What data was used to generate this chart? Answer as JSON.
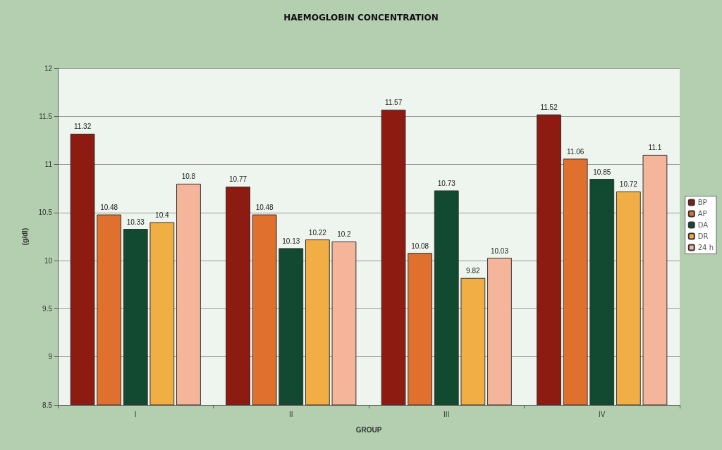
{
  "chart_data": {
    "type": "bar",
    "title": "HAEMOGLOBIN CONCENTRATION",
    "xlabel": "GROUP",
    "ylabel": "(g/dl)",
    "categories": [
      "I",
      "II",
      "III",
      "IV"
    ],
    "series": [
      {
        "name": "BP",
        "color": "#8e1b12",
        "values": [
          11.32,
          10.77,
          11.57,
          11.52
        ]
      },
      {
        "name": "AP",
        "color": "#e0702e",
        "values": [
          10.48,
          10.48,
          10.08,
          11.06
        ]
      },
      {
        "name": "DA",
        "color": "#114a30",
        "values": [
          10.33,
          10.13,
          10.73,
          10.85
        ]
      },
      {
        "name": "DR",
        "color": "#f0ae45",
        "values": [
          10.4,
          10.22,
          9.82,
          10.72
        ]
      },
      {
        "name": "24 h",
        "color": "#f5b59a",
        "values": [
          10.8,
          10.2,
          10.03,
          11.1
        ]
      }
    ],
    "ylim": [
      8.5,
      12
    ],
    "yticks": [
      8.5,
      9,
      9.5,
      10,
      10.5,
      11,
      11.5,
      12
    ],
    "grid": "y",
    "legend": "right",
    "data_labels": true
  }
}
